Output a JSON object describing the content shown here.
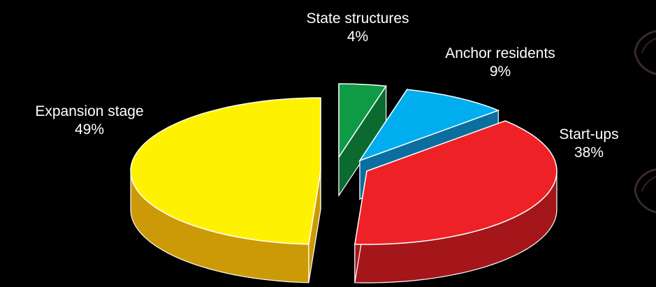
{
  "chart_data": {
    "type": "pie",
    "title": "",
    "style": "3d-exploded",
    "background": "#000000",
    "slices": [
      {
        "label": "State structures",
        "value": 4,
        "value_text": "4%",
        "color": "#0f9a45",
        "side_color": "#0a6a30"
      },
      {
        "label": "Anchor residents",
        "value": 9,
        "value_text": "9%",
        "color": "#00aeef",
        "side_color": "#0b6e9e"
      },
      {
        "label": "Start-ups",
        "value": 38,
        "value_text": "38%",
        "color": "#ee2127",
        "side_color": "#a5161a"
      },
      {
        "label": "Expansion stage",
        "value": 49,
        "value_text": "49%",
        "color": "#fff200",
        "side_color": "#cc9a06"
      }
    ]
  }
}
